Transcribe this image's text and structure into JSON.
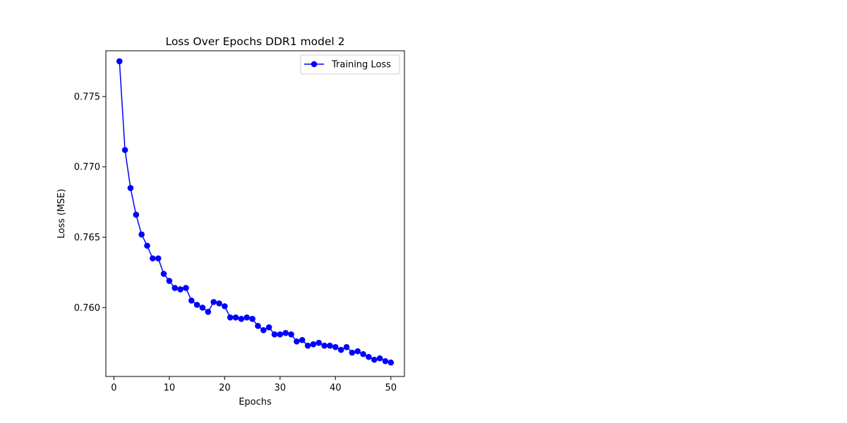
{
  "chart_data": {
    "type": "line",
    "title": "Loss Over Epochs DDR1 model 2",
    "xlabel": "Epochs",
    "ylabel": "Loss (MSE)",
    "xlim": [
      -1.45,
      52.45
    ],
    "ylim": [
      0.75511,
      0.77825
    ],
    "xticks": [
      {
        "value": 0,
        "label": "0"
      },
      {
        "value": 10,
        "label": "10"
      },
      {
        "value": 20,
        "label": "20"
      },
      {
        "value": 30,
        "label": "30"
      },
      {
        "value": 40,
        "label": "40"
      },
      {
        "value": 50,
        "label": "50"
      }
    ],
    "yticks": [
      {
        "value": 0.76,
        "label": "0.760"
      },
      {
        "value": 0.765,
        "label": "0.765"
      },
      {
        "value": 0.77,
        "label": "0.770"
      },
      {
        "value": 0.775,
        "label": "0.775"
      }
    ],
    "grid": false,
    "legend_position": "top-right",
    "series": [
      {
        "name": "Training Loss",
        "color": "#0000ff",
        "marker": "circle",
        "x": [
          1,
          2,
          3,
          4,
          5,
          6,
          7,
          8,
          9,
          10,
          11,
          12,
          13,
          14,
          15,
          16,
          17,
          18,
          19,
          20,
          21,
          22,
          23,
          24,
          25,
          26,
          27,
          28,
          29,
          30,
          31,
          32,
          33,
          34,
          35,
          36,
          37,
          38,
          39,
          40,
          41,
          42,
          43,
          44,
          45,
          46,
          47,
          48,
          49,
          50
        ],
        "y": [
          0.7775,
          0.7712,
          0.7685,
          0.7666,
          0.7652,
          0.7644,
          0.7635,
          0.7635,
          0.7624,
          0.7619,
          0.7614,
          0.7613,
          0.7614,
          0.7605,
          0.7602,
          0.76,
          0.7597,
          0.7604,
          0.7603,
          0.7601,
          0.7593,
          0.7593,
          0.7592,
          0.7593,
          0.7592,
          0.7587,
          0.7584,
          0.7586,
          0.7581,
          0.7581,
          0.7582,
          0.7581,
          0.7576,
          0.7577,
          0.7573,
          0.7574,
          0.7575,
          0.7573,
          0.7573,
          0.7572,
          0.757,
          0.7572,
          0.7568,
          0.7569,
          0.7567,
          0.7565,
          0.7563,
          0.7564,
          0.7562,
          0.7561
        ]
      }
    ]
  }
}
